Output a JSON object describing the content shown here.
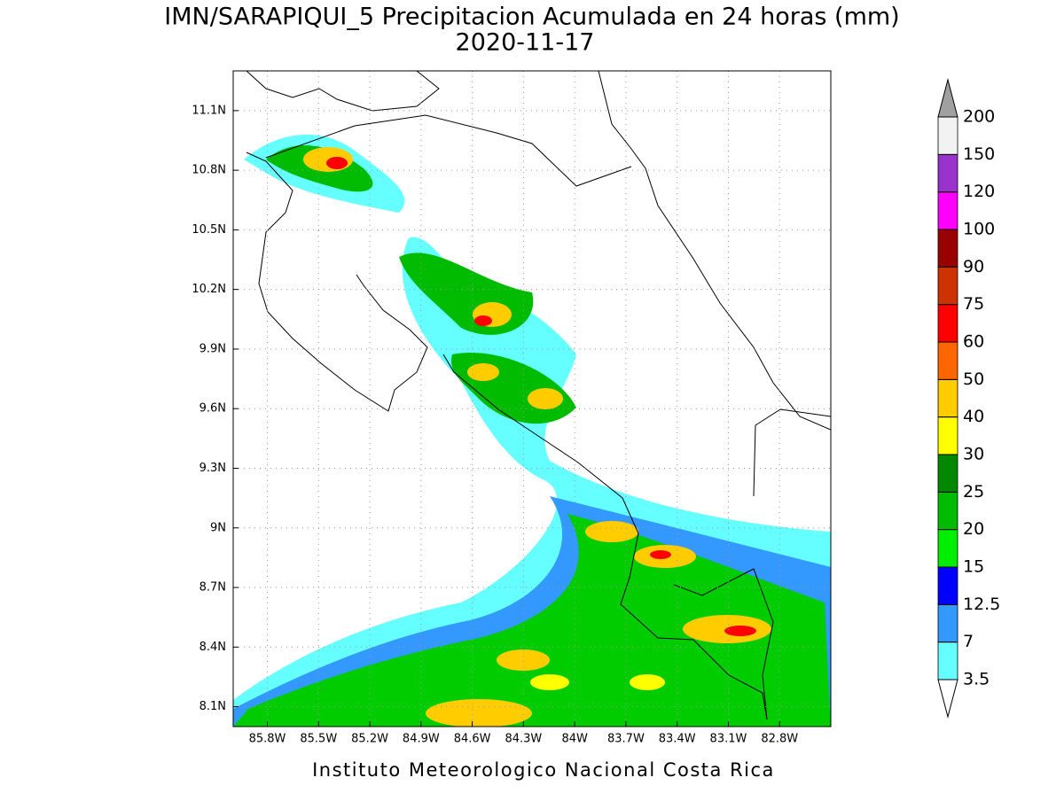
{
  "title": "IMN/SARAPIQUI_5 Precipitacion Acumulada en 24 horas (mm)",
  "date": "2020-11-17",
  "map": {
    "xlim": [
      -86.0,
      -82.5
    ],
    "ylim": [
      8.0,
      11.3
    ],
    "grid": true,
    "xticks": [
      {
        "value": -85.8,
        "label": "85.8W"
      },
      {
        "value": -85.5,
        "label": "85.5W"
      },
      {
        "value": -85.2,
        "label": "85.2W"
      },
      {
        "value": -84.9,
        "label": "84.9W"
      },
      {
        "value": -84.6,
        "label": "84.6W"
      },
      {
        "value": -84.3,
        "label": "84.3W"
      },
      {
        "value": -84.0,
        "label": "84W"
      },
      {
        "value": -83.7,
        "label": "83.7W"
      },
      {
        "value": -83.4,
        "label": "83.4W"
      },
      {
        "value": -83.1,
        "label": "83.1W"
      },
      {
        "value": -82.8,
        "label": "82.8W"
      }
    ],
    "yticks": [
      {
        "value": 8.1,
        "label": "8.1N"
      },
      {
        "value": 8.4,
        "label": "8.4N"
      },
      {
        "value": 8.7,
        "label": "8.7N"
      },
      {
        "value": 9.0,
        "label": "9N"
      },
      {
        "value": 9.3,
        "label": "9.3N"
      },
      {
        "value": 9.6,
        "label": "9.6N"
      },
      {
        "value": 9.9,
        "label": "9.9N"
      },
      {
        "value": 10.2,
        "label": "10.2N"
      },
      {
        "value": 10.5,
        "label": "10.5N"
      },
      {
        "value": 10.8,
        "label": "10.8N"
      },
      {
        "value": 11.1,
        "label": "11.1N"
      }
    ]
  },
  "colorbar": {
    "levels": [
      3.5,
      7,
      12.5,
      15,
      20,
      25,
      30,
      40,
      50,
      60,
      75,
      90,
      100,
      120,
      150,
      200
    ],
    "colors": [
      "#66ffff",
      "#3399ff",
      "#0000ff",
      "#00ee00",
      "#00bb00",
      "#008800",
      "#ffff00",
      "#ffcc00",
      "#ff6600",
      "#ff0000",
      "#cc3300",
      "#990000",
      "#ff00ff",
      "#9933cc",
      "#f2f2f2"
    ],
    "under_color": "#ffffff",
    "over_color": "#a0a0a0"
  },
  "footer": "Instituto Meteorologico Nacional Costa Rica"
}
